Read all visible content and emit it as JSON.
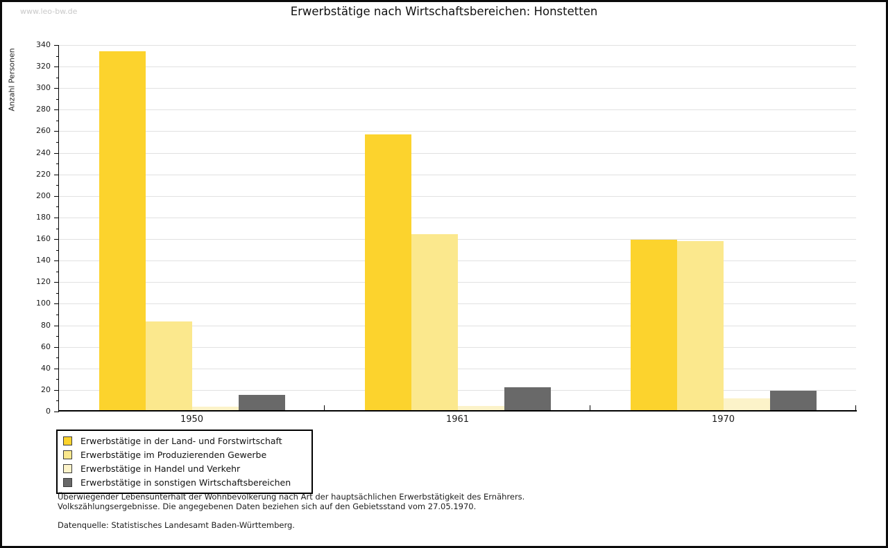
{
  "watermark": "www.leo-bw.de",
  "chart_data": {
    "type": "bar",
    "title": "Erwerbstätige nach Wirtschaftsbereichen: Honstetten",
    "ylabel": "Anzahl Personen",
    "xlabel": "",
    "categories": [
      "1950",
      "1961",
      "1970"
    ],
    "series": [
      {
        "name": "Erwerbstätige in der Land- und Forstwirtschaft",
        "color": "#fcd32d",
        "values": [
          333,
          256,
          158
        ]
      },
      {
        "name": "Erwerbstätige im Produzierenden Gewerbe",
        "color": "#fbe88d",
        "values": [
          82,
          163,
          157
        ]
      },
      {
        "name": "Erwerbstätige in Handel und Verkehr",
        "color": "#fcf3c9",
        "values": [
          3,
          4,
          11
        ]
      },
      {
        "name": "Erwerbstätige in sonstigen Wirtschaftsbereichen",
        "color": "#696969",
        "values": [
          14,
          21,
          18
        ]
      }
    ],
    "ylim": [
      0,
      340
    ],
    "ytick_step": 20,
    "ytick_minor_step": 10,
    "grid": true,
    "gridline_color": "#e1e1e1",
    "legend_position": "bottom-left"
  },
  "footer": {
    "line1": "Überwiegender Lebensunterhalt der Wohnbevölkerung nach Art der hauptsächlichen Erwerbstätigkeit des Ernährers.",
    "line2": "Volkszählungsergebnisse. Die angegebenen Daten beziehen sich auf den Gebietsstand vom 27.05.1970.",
    "source": "Datenquelle: Statistisches Landesamt Baden-Württemberg."
  }
}
